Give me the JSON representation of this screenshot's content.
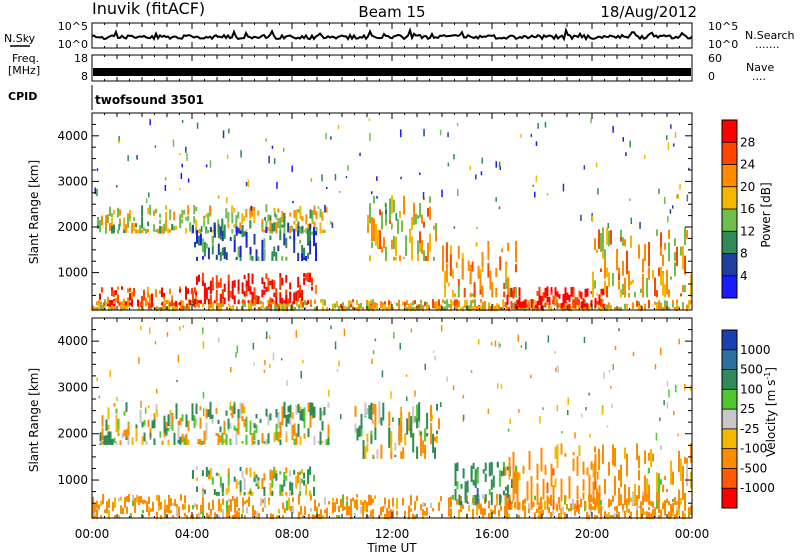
{
  "header": {
    "station": "Inuvik (fitACF)",
    "beam": "Beam 15",
    "date": "18/Aug/2012"
  },
  "noise_panel": {
    "left_label": "N.Sky",
    "right_label": "N.Search",
    "right_marker": ".......",
    "y_ticks_left": [
      "10^5",
      "10^0"
    ],
    "y_ticks_right": [
      "10^5",
      "10^0"
    ]
  },
  "freq_panel": {
    "left_label_1": "Freq.",
    "left_label_2": "[MHz]",
    "y_ticks_left": [
      "18",
      "8"
    ],
    "right_label": "Nave",
    "right_marker": "....",
    "y_ticks_right": [
      "60",
      "0"
    ]
  },
  "cpid_panel": {
    "label": "CPID",
    "program": "twofsound 3501"
  },
  "x_axis": {
    "label": "Time UT",
    "ticks": [
      "00:00",
      "04:00",
      "08:00",
      "12:00",
      "16:00",
      "20:00",
      "00:00"
    ]
  },
  "range_axis": {
    "label": "Slant Range [km]",
    "ticks": [
      "1000",
      "2000",
      "3000",
      "4000"
    ]
  },
  "power_colorbar": {
    "label": "Power [dB]",
    "ticks": [
      "4",
      "8",
      "12",
      "16",
      "20",
      "24",
      "28"
    ],
    "colors": [
      "#1a1aff",
      "#1f3fa0",
      "#2e8b57",
      "#6fbf4f",
      "#f5b800",
      "#ff8c00",
      "#ff4500",
      "#ff0000"
    ]
  },
  "velocity_colorbar": {
    "label": "Velocity [m s",
    "label_sup": "-1",
    "label_end": "]",
    "ticks": [
      "1000",
      "500",
      "100",
      "25",
      "-25",
      "-100",
      "-500",
      "-1000"
    ],
    "colors": [
      "#1a3fb0",
      "#2e6fa0",
      "#2e8b57",
      "#4fc830",
      "#c8c8c8",
      "#f5b800",
      "#ff8c00",
      "#ff5a00",
      "#ff0000"
    ]
  },
  "chart_data": {
    "type": "heatmap",
    "title": "Inuvik (fitACF) Beam 15 18/Aug/2012",
    "xlabel": "Time UT",
    "ylabel": "Slant Range [km]",
    "x_range_hours": [
      0,
      24
    ],
    "y_range_km": [
      180,
      4500
    ],
    "power_scale_db": [
      0,
      30
    ],
    "velocity_scale_ms": [
      -1000,
      1000
    ],
    "power_regions": [
      {
        "t0": 0.0,
        "t1": 24.0,
        "r0": 200,
        "r1": 420,
        "level": "mixed",
        "value_db": 18
      },
      {
        "t0": 0.2,
        "t1": 4.2,
        "r0": 300,
        "r1": 700,
        "level": "high",
        "value_db": 24
      },
      {
        "t0": 4.0,
        "t1": 9.0,
        "r0": 350,
        "r1": 1000,
        "level": "high",
        "value_db": 28
      },
      {
        "t0": 0.2,
        "t1": 9.5,
        "r0": 1900,
        "r1": 2500,
        "level": "mid",
        "value_db": 16
      },
      {
        "t0": 4.0,
        "t1": 9.0,
        "r0": 1300,
        "r1": 2100,
        "level": "low",
        "value_db": 8
      },
      {
        "t0": 11.0,
        "t1": 13.8,
        "r0": 1300,
        "r1": 2700,
        "level": "mid",
        "value_db": 18
      },
      {
        "t0": 14.0,
        "t1": 17.0,
        "r0": 500,
        "r1": 1700,
        "level": "mid",
        "value_db": 20
      },
      {
        "t0": 16.5,
        "t1": 20.5,
        "r0": 250,
        "r1": 700,
        "level": "high",
        "value_db": 28
      },
      {
        "t0": 20.0,
        "t1": 24.0,
        "r0": 500,
        "r1": 2000,
        "level": "mid",
        "value_db": 18
      }
    ],
    "velocity_regions": [
      {
        "t0": 0.0,
        "t1": 24.0,
        "r0": 200,
        "r1": 700,
        "value_ms": -200
      },
      {
        "t0": 0.3,
        "t1": 9.5,
        "r0": 1800,
        "r1": 2700,
        "value_ms": 0
      },
      {
        "t0": 4.0,
        "t1": 9.0,
        "r0": 700,
        "r1": 1300,
        "value_ms": 100
      },
      {
        "t0": 10.5,
        "t1": 14.0,
        "r0": 1500,
        "r1": 2700,
        "value_ms": 0
      },
      {
        "t0": 14.5,
        "t1": 17.0,
        "r0": 500,
        "r1": 1400,
        "value_ms": 300
      },
      {
        "t0": 16.5,
        "t1": 20.5,
        "r0": 400,
        "r1": 1800,
        "value_ms": -300
      },
      {
        "t0": 20.0,
        "t1": 24.0,
        "r0": 500,
        "r1": 1800,
        "value_ms": -200
      }
    ]
  }
}
